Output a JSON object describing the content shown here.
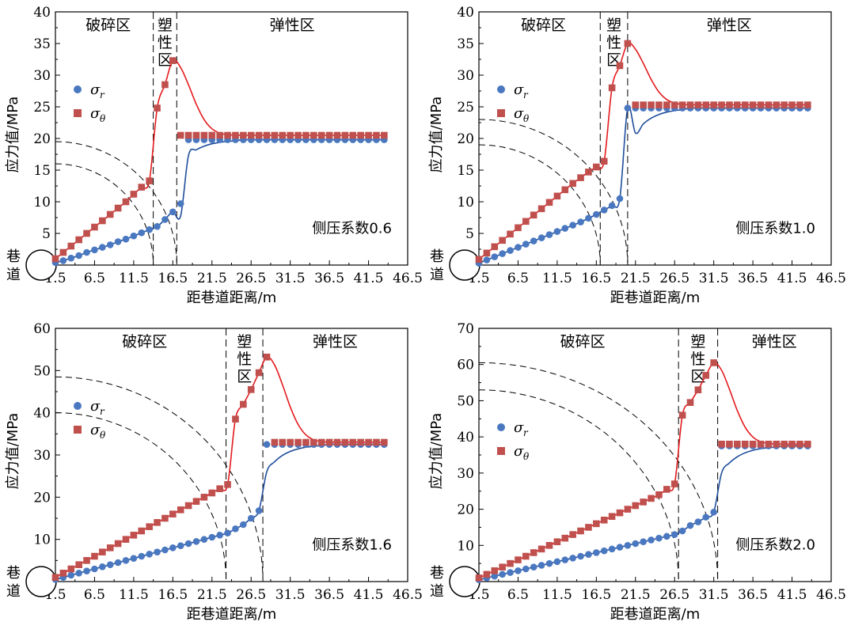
{
  "figure": {
    "colors": {
      "sigma_r": "#4a78c0",
      "sigma_theta": "#c0504d",
      "curve_r": "#1f4e9c",
      "curve_theta": "#e31a1c"
    }
  },
  "chart_data": [
    {
      "type": "scatter",
      "xlabel": "距巷道距离/m",
      "ylabel": "应力值/MPa",
      "xticks": [
        "1.5",
        "6.5",
        "11.5",
        "16.5",
        "21.5",
        "26.5",
        "31.5",
        "36.5",
        "41.5",
        "46.5"
      ],
      "yticks": [
        "0",
        "5",
        "10",
        "15",
        "20",
        "25",
        "30",
        "35",
        "40"
      ],
      "xlim": [
        1.5,
        46.5
      ],
      "ylim": [
        0,
        40
      ],
      "tunnel_label": [
        "巷",
        "道"
      ],
      "zones": [
        "破碎区",
        [
          "塑",
          "性",
          "区"
        ],
        "弹性区"
      ],
      "boundaries": [
        14.0,
        17.0
      ],
      "arc_radii_y": [
        19.5,
        16
      ],
      "legend": {
        "position": "top-left",
        "r_main": "σ",
        "r_sub": "r",
        "t_main": "σ",
        "t_sub": "θ"
      },
      "annotation": "侧压系数0.6",
      "series": [
        {
          "name": "σr",
          "x": [
            1.5,
            2.5,
            3.5,
            4.5,
            5.5,
            6.5,
            7.5,
            8.5,
            9.5,
            10.5,
            11.5,
            12.5,
            13.5,
            14.5,
            15.5,
            16.5,
            17.5,
            18.5,
            19.5,
            20.5,
            21.5,
            22.5,
            23.5,
            24.5,
            25.5,
            26.5,
            27.5,
            28.5,
            29.5,
            30.5,
            31.5,
            32.5,
            33.5,
            34.5,
            35.5,
            36.5,
            37.5,
            38.5,
            39.5,
            40.5,
            41.5,
            42.5,
            43.5
          ],
          "y": [
            0.4,
            0.7,
            1.1,
            1.5,
            2.0,
            2.4,
            2.8,
            3.2,
            3.7,
            4.1,
            4.6,
            5.1,
            5.6,
            6.1,
            7.2,
            8.4,
            9.7,
            19.8,
            19.8,
            19.8,
            19.8,
            19.8,
            19.8,
            19.8,
            19.8,
            19.8,
            19.8,
            19.8,
            19.8,
            19.8,
            19.8,
            19.8,
            19.8,
            19.8,
            19.8,
            19.8,
            19.8,
            19.8,
            19.8,
            19.8,
            19.8,
            19.8,
            19.8
          ]
        },
        {
          "name": "σθ",
          "x": [
            1.5,
            2.5,
            3.5,
            4.5,
            5.5,
            6.5,
            7.5,
            8.5,
            9.5,
            10.5,
            11.5,
            12.5,
            13.5,
            14.5,
            15.5,
            16.5,
            17.5,
            18.5,
            19.5,
            20.5,
            21.5,
            22.5,
            23.5,
            24.5,
            25.5,
            26.5,
            27.5,
            28.5,
            29.5,
            30.5,
            31.5,
            32.5,
            33.5,
            34.5,
            35.5,
            36.5,
            37.5,
            38.5,
            39.5,
            40.5,
            41.5,
            42.5,
            43.5
          ],
          "y": [
            1.0,
            2.0,
            3.0,
            4.0,
            5.0,
            6.0,
            7.0,
            8.0,
            9.0,
            10.0,
            11.2,
            12.3,
            13.3,
            24.8,
            28.5,
            32.3,
            20.5,
            20.5,
            20.5,
            20.5,
            20.5,
            20.5,
            20.5,
            20.5,
            20.5,
            20.5,
            20.5,
            20.5,
            20.5,
            20.5,
            20.5,
            20.5,
            20.5,
            20.5,
            20.5,
            20.5,
            20.5,
            20.5,
            20.5,
            20.5,
            20.5,
            20.5,
            20.5
          ]
        }
      ]
    },
    {
      "type": "scatter",
      "xlabel": "距巷道距离/m",
      "ylabel": "应力值/MPa",
      "xticks": [
        "1.5",
        "6.5",
        "11.5",
        "16.5",
        "21.5",
        "26.5",
        "31.5",
        "36.5",
        "41.5",
        "46.5"
      ],
      "yticks": [
        "0",
        "5",
        "10",
        "15",
        "20",
        "25",
        "30",
        "35",
        "40"
      ],
      "xlim": [
        1.5,
        46.5
      ],
      "ylim": [
        0,
        40
      ],
      "tunnel_label": [
        "巷",
        "道"
      ],
      "zones": [
        "破碎区",
        [
          "塑",
          "性",
          "区"
        ],
        "弹性区"
      ],
      "boundaries": [
        17.0,
        20.5
      ],
      "arc_radii_y": [
        23,
        19
      ],
      "legend": {
        "position": "top-left",
        "r_main": "σ",
        "r_sub": "r",
        "t_main": "σ",
        "t_sub": "θ"
      },
      "annotation": "侧压系数1.0",
      "series": [
        {
          "name": "σr",
          "x": [
            1.5,
            2.5,
            3.5,
            4.5,
            5.5,
            6.5,
            7.5,
            8.5,
            9.5,
            10.5,
            11.5,
            12.5,
            13.5,
            14.5,
            15.5,
            16.5,
            17.5,
            18.5,
            19.5,
            20.5,
            21.5,
            22.5,
            23.5,
            24.5,
            25.5,
            26.5,
            27.5,
            28.5,
            29.5,
            30.5,
            31.5,
            32.5,
            33.5,
            34.5,
            35.5,
            36.5,
            37.5,
            38.5,
            39.5,
            40.5,
            41.5,
            42.5,
            43.5
          ],
          "y": [
            0.3,
            0.8,
            1.3,
            1.8,
            2.3,
            2.8,
            3.3,
            3.8,
            4.3,
            4.8,
            5.3,
            5.8,
            6.3,
            6.8,
            7.4,
            8.0,
            8.7,
            9.4,
            10.5,
            24.8,
            24.8,
            24.8,
            24.8,
            24.8,
            24.8,
            24.8,
            24.8,
            24.8,
            24.8,
            24.8,
            24.8,
            24.8,
            24.8,
            24.8,
            24.8,
            24.8,
            24.8,
            24.8,
            24.8,
            24.8,
            24.8,
            24.8,
            24.8
          ]
        },
        {
          "name": "σθ",
          "x": [
            1.5,
            2.5,
            3.5,
            4.5,
            5.5,
            6.5,
            7.5,
            8.5,
            9.5,
            10.5,
            11.5,
            12.5,
            13.5,
            14.5,
            15.5,
            16.5,
            17.5,
            18.5,
            19.5,
            20.5,
            21.5,
            22.5,
            23.5,
            24.5,
            25.5,
            26.5,
            27.5,
            28.5,
            29.5,
            30.5,
            31.5,
            32.5,
            33.5,
            34.5,
            35.5,
            36.5,
            37.5,
            38.5,
            39.5,
            40.5,
            41.5,
            42.5,
            43.5
          ],
          "y": [
            0.9,
            1.9,
            2.9,
            3.9,
            4.9,
            5.9,
            6.9,
            7.9,
            8.9,
            9.9,
            10.9,
            11.9,
            12.9,
            13.8,
            14.7,
            15.5,
            16.4,
            28.0,
            31.5,
            35.0,
            25.3,
            25.3,
            25.3,
            25.3,
            25.3,
            25.3,
            25.3,
            25.3,
            25.3,
            25.3,
            25.3,
            25.3,
            25.3,
            25.3,
            25.3,
            25.3,
            25.3,
            25.3,
            25.3,
            25.3,
            25.3,
            25.3,
            25.3
          ]
        }
      ]
    },
    {
      "type": "scatter",
      "xlabel": "距巷道距离/m",
      "ylabel": "应力值/MPa",
      "xticks": [
        "1.5",
        "6.5",
        "11.5",
        "16.5",
        "21.5",
        "26.5",
        "31.5",
        "36.5",
        "41.5",
        "46.5"
      ],
      "yticks": [
        "0",
        "10",
        "20",
        "30",
        "40",
        "50",
        "60"
      ],
      "xlim": [
        1.5,
        46.5
      ],
      "ylim": [
        0,
        60
      ],
      "tunnel_label": [
        "巷",
        "道"
      ],
      "zones": [
        "破碎区",
        [
          "塑",
          "性",
          "区"
        ],
        "弹性区"
      ],
      "boundaries": [
        23.3,
        28.0
      ],
      "arc_radii_y": [
        48.5,
        40
      ],
      "legend": {
        "position": "top-left",
        "r_main": "σ",
        "r_sub": "r",
        "t_main": "σ",
        "t_sub": "θ"
      },
      "annotation": "侧压系数1.6",
      "series": [
        {
          "name": "σr",
          "x": [
            1.5,
            2.5,
            3.5,
            4.5,
            5.5,
            6.5,
            7.5,
            8.5,
            9.5,
            10.5,
            11.5,
            12.5,
            13.5,
            14.5,
            15.5,
            16.5,
            17.5,
            18.5,
            19.5,
            20.5,
            21.5,
            22.5,
            23.5,
            24.5,
            25.5,
            26.5,
            27.5,
            28.5,
            29.5,
            30.5,
            31.5,
            32.5,
            33.5,
            34.5,
            35.5,
            36.5,
            37.5,
            38.5,
            39.5,
            40.5,
            41.5,
            42.5,
            43.5
          ],
          "y": [
            0.5,
            1.0,
            1.5,
            2.0,
            2.5,
            3.0,
            3.5,
            4.0,
            4.5,
            5.0,
            5.5,
            6.0,
            6.5,
            7.0,
            7.5,
            8.0,
            8.5,
            9.0,
            9.5,
            10.0,
            10.5,
            11.0,
            11.5,
            12.5,
            13.5,
            15.0,
            16.8,
            32.5,
            32.5,
            32.5,
            32.5,
            32.5,
            32.5,
            32.5,
            32.5,
            32.5,
            32.5,
            32.5,
            32.5,
            32.5,
            32.5,
            32.5,
            32.5
          ]
        },
        {
          "name": "σθ",
          "x": [
            1.5,
            2.5,
            3.5,
            4.5,
            5.5,
            6.5,
            7.5,
            8.5,
            9.5,
            10.5,
            11.5,
            12.5,
            13.5,
            14.5,
            15.5,
            16.5,
            17.5,
            18.5,
            19.5,
            20.5,
            21.5,
            22.5,
            23.5,
            24.5,
            25.5,
            26.5,
            27.5,
            28.5,
            29.5,
            30.5,
            31.5,
            32.5,
            33.5,
            34.5,
            35.5,
            36.5,
            37.5,
            38.5,
            39.5,
            40.5,
            41.5,
            42.5,
            43.5
          ],
          "y": [
            1.0,
            2.0,
            3.0,
            4.0,
            5.0,
            6.0,
            7.0,
            8.0,
            9.0,
            10.0,
            11.0,
            12.0,
            13.0,
            14.0,
            15.0,
            16.0,
            17.0,
            18.0,
            19.0,
            20.0,
            21.0,
            22.0,
            23.0,
            38.5,
            42.0,
            45.5,
            49.5,
            53.2,
            33.0,
            33.0,
            33.0,
            33.0,
            33.0,
            33.0,
            33.0,
            33.0,
            33.0,
            33.0,
            33.0,
            33.0,
            33.0,
            33.0,
            33.0
          ]
        }
      ]
    },
    {
      "type": "scatter",
      "xlabel": "距巷道距离/m",
      "ylabel": "应力值/MPa",
      "xticks": [
        "1.5",
        "6.5",
        "11.5",
        "16.5",
        "21.5",
        "26.5",
        "31.5",
        "36.5",
        "41.5",
        "46.5"
      ],
      "yticks": [
        "0",
        "10",
        "20",
        "30",
        "40",
        "50",
        "60",
        "70"
      ],
      "xlim": [
        1.5,
        46.5
      ],
      "ylim": [
        0,
        70
      ],
      "tunnel_label": [
        "巷",
        "道"
      ],
      "zones": [
        "破碎区",
        [
          "塑",
          "性",
          "区"
        ],
        "弹性区"
      ],
      "boundaries": [
        27.0,
        32.0
      ],
      "arc_radii_y": [
        60.5,
        53
      ],
      "legend": {
        "position": "center-left",
        "r_main": "σ",
        "r_sub": "r",
        "t_main": "σ",
        "t_sub": "θ"
      },
      "annotation": "侧压系数2.0",
      "series": [
        {
          "name": "σr",
          "x": [
            1.5,
            2.5,
            3.5,
            4.5,
            5.5,
            6.5,
            7.5,
            8.5,
            9.5,
            10.5,
            11.5,
            12.5,
            13.5,
            14.5,
            15.5,
            16.5,
            17.5,
            18.5,
            19.5,
            20.5,
            21.5,
            22.5,
            23.5,
            24.5,
            25.5,
            26.5,
            27.5,
            28.5,
            29.5,
            30.5,
            31.5,
            32.5,
            33.5,
            34.5,
            35.5,
            36.5,
            37.5,
            38.5,
            39.5,
            40.5,
            41.5,
            42.5,
            43.5
          ],
          "y": [
            0.5,
            1.0,
            1.5,
            2.0,
            2.5,
            3.0,
            3.5,
            4.0,
            4.5,
            5.0,
            5.5,
            6.0,
            6.5,
            7.0,
            7.5,
            8.0,
            8.5,
            9.0,
            9.5,
            10.0,
            10.5,
            11.0,
            11.5,
            12.0,
            12.5,
            13.0,
            14.0,
            15.5,
            16.5,
            17.8,
            19.2,
            37.5,
            37.5,
            37.5,
            37.5,
            37.5,
            37.5,
            37.5,
            37.5,
            37.5,
            37.5,
            37.5,
            37.5
          ]
        },
        {
          "name": "σθ",
          "x": [
            1.5,
            2.5,
            3.5,
            4.5,
            5.5,
            6.5,
            7.5,
            8.5,
            9.5,
            10.5,
            11.5,
            12.5,
            13.5,
            14.5,
            15.5,
            16.5,
            17.5,
            18.5,
            19.5,
            20.5,
            21.5,
            22.5,
            23.5,
            24.5,
            25.5,
            26.5,
            27.5,
            28.5,
            29.5,
            30.5,
            31.5,
            32.5,
            33.5,
            34.5,
            35.5,
            36.5,
            37.5,
            38.5,
            39.5,
            40.5,
            41.5,
            42.5,
            43.5
          ],
          "y": [
            1.0,
            2.0,
            3.0,
            4.0,
            5.0,
            6.0,
            7.0,
            8.0,
            9.0,
            10.0,
            11.0,
            12.0,
            13.0,
            14.0,
            15.0,
            16.0,
            17.0,
            18.0,
            19.0,
            20.0,
            21.0,
            22.0,
            23.0,
            24.0,
            25.5,
            27.0,
            46.0,
            49.5,
            53.0,
            57.0,
            60.5,
            38.0,
            38.0,
            38.0,
            38.0,
            38.0,
            38.0,
            38.0,
            38.0,
            38.0,
            38.0,
            38.0,
            38.0
          ]
        }
      ]
    }
  ]
}
